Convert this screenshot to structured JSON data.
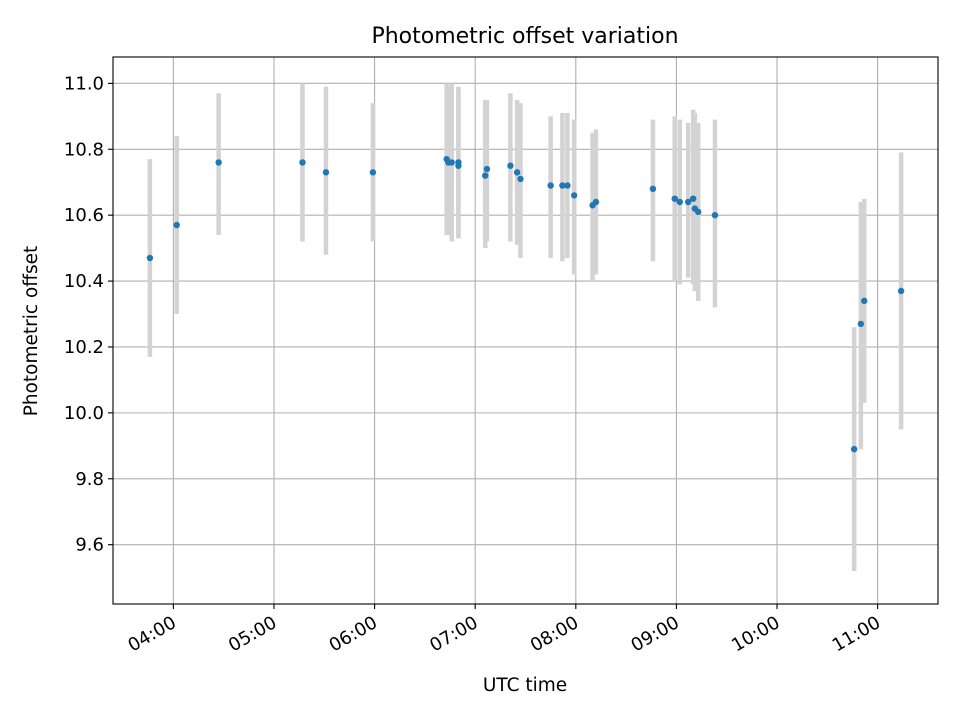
{
  "chart_data": {
    "type": "scatter",
    "title": "Photometric offset variation",
    "xlabel": "UTC time",
    "ylabel": "Photometric offset",
    "xlim": [
      "03:24",
      "11:36"
    ],
    "ylim": [
      9.42,
      11.08
    ],
    "xticks": [
      "04:00",
      "05:00",
      "06:00",
      "07:00",
      "08:00",
      "09:00",
      "10:00",
      "11:00"
    ],
    "yticks": [
      9.6,
      9.8,
      10.0,
      10.2,
      10.4,
      10.6,
      10.8,
      11.0
    ],
    "ytick_labels": [
      "9.6",
      "9.8",
      "10.0",
      "10.2",
      "10.4",
      "10.6",
      "10.8",
      "11.0"
    ],
    "grid": true,
    "colors": {
      "points": "#1f77b4",
      "errorbars": "#d3d3d3",
      "grid": "#b0b0b0"
    },
    "series": [
      {
        "points": [
          {
            "x": "03:46",
            "y": 10.47,
            "ylow": 10.17,
            "yhigh": 10.77
          },
          {
            "x": "04:02",
            "y": 10.57,
            "ylow": 10.3,
            "yhigh": 10.84
          },
          {
            "x": "04:27",
            "y": 10.76,
            "ylow": 10.54,
            "yhigh": 10.97
          },
          {
            "x": "05:17",
            "y": 10.76,
            "ylow": 10.52,
            "yhigh": 11.0
          },
          {
            "x": "05:31",
            "y": 10.73,
            "ylow": 10.48,
            "yhigh": 10.99
          },
          {
            "x": "05:59",
            "y": 10.73,
            "ylow": 10.52,
            "yhigh": 10.94
          },
          {
            "x": "06:43",
            "y": 10.77,
            "ylow": 10.54,
            "yhigh": 11.0
          },
          {
            "x": "06:44",
            "y": 10.76,
            "ylow": 10.54,
            "yhigh": 10.99
          },
          {
            "x": "06:46",
            "y": 10.76,
            "ylow": 10.52,
            "yhigh": 11.0
          },
          {
            "x": "06:50",
            "y": 10.75,
            "ylow": 10.53,
            "yhigh": 10.98
          },
          {
            "x": "06:50",
            "y": 10.76,
            "ylow": 10.53,
            "yhigh": 10.99
          },
          {
            "x": "07:06",
            "y": 10.72,
            "ylow": 10.5,
            "yhigh": 10.95
          },
          {
            "x": "07:07",
            "y": 10.74,
            "ylow": 10.52,
            "yhigh": 10.95
          },
          {
            "x": "07:21",
            "y": 10.75,
            "ylow": 10.52,
            "yhigh": 10.97
          },
          {
            "x": "07:25",
            "y": 10.73,
            "ylow": 10.51,
            "yhigh": 10.95
          },
          {
            "x": "07:27",
            "y": 10.71,
            "ylow": 10.47,
            "yhigh": 10.94
          },
          {
            "x": "07:45",
            "y": 10.69,
            "ylow": 10.47,
            "yhigh": 10.9
          },
          {
            "x": "07:52",
            "y": 10.69,
            "ylow": 10.46,
            "yhigh": 10.91
          },
          {
            "x": "07:55",
            "y": 10.69,
            "ylow": 10.47,
            "yhigh": 10.91
          },
          {
            "x": "07:59",
            "y": 10.66,
            "ylow": 10.42,
            "yhigh": 10.89
          },
          {
            "x": "08:10",
            "y": 10.63,
            "ylow": 10.4,
            "yhigh": 10.85
          },
          {
            "x": "08:12",
            "y": 10.64,
            "ylow": 10.42,
            "yhigh": 10.86
          },
          {
            "x": "08:46",
            "y": 10.68,
            "ylow": 10.46,
            "yhigh": 10.89
          },
          {
            "x": "08:59",
            "y": 10.65,
            "ylow": 10.4,
            "yhigh": 10.9
          },
          {
            "x": "09:02",
            "y": 10.64,
            "ylow": 10.39,
            "yhigh": 10.89
          },
          {
            "x": "09:07",
            "y": 10.64,
            "ylow": 10.41,
            "yhigh": 10.88
          },
          {
            "x": "09:10",
            "y": 10.65,
            "ylow": 10.39,
            "yhigh": 10.92
          },
          {
            "x": "09:11",
            "y": 10.62,
            "ylow": 10.37,
            "yhigh": 10.91
          },
          {
            "x": "09:13",
            "y": 10.61,
            "ylow": 10.34,
            "yhigh": 10.88
          },
          {
            "x": "09:23",
            "y": 10.6,
            "ylow": 10.32,
            "yhigh": 10.89
          },
          {
            "x": "10:46",
            "y": 9.89,
            "ylow": 9.52,
            "yhigh": 10.26
          },
          {
            "x": "10:50",
            "y": 10.27,
            "ylow": 9.89,
            "yhigh": 10.64
          },
          {
            "x": "10:52",
            "y": 10.34,
            "ylow": 10.03,
            "yhigh": 10.65
          },
          {
            "x": "11:14",
            "y": 10.37,
            "ylow": 9.95,
            "yhigh": 10.79
          }
        ]
      }
    ]
  }
}
